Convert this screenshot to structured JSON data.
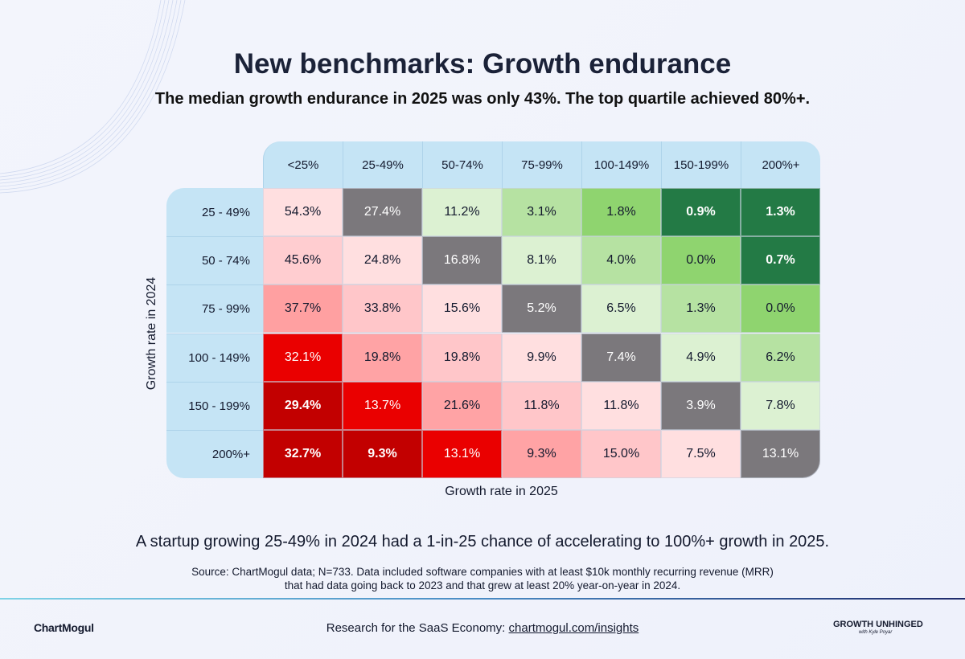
{
  "title": "New benchmarks: Growth endurance",
  "subtitle": "The median growth endurance in 2025 was only 43%. The top quartile achieved 80%+.",
  "note": "A startup growing 25-49% in 2024 had a 1-in-25 chance of accelerating to 100%+ growth in 2025.",
  "source_line1": "Source: ChartMogul data; N=733. Data included software companies with at least $10k monthly recurring revenue (MRR)",
  "source_line2": "that had data going back to 2023 and that grew at least 20% year-on-year in 2024.",
  "footer": {
    "brand": "ChartMogul",
    "tagline": "Research for the SaaS Economy: ",
    "link": "chartmogul.com/insights",
    "partner": "GROWTH UNHINGED",
    "partner_sub": "with Kyle Poyar"
  },
  "chart_data": {
    "type": "heatmap",
    "xlabel": "Growth rate in 2025",
    "ylabel": "Growth rate in 2024",
    "columns": [
      "<25%",
      "25-49%",
      "50-74%",
      "75-99%",
      "100-149%",
      "150-199%",
      "200%+"
    ],
    "rows": [
      "25 - 49%",
      "50 - 74%",
      "75 - 99%",
      "100 - 149%",
      "150 - 199%",
      "200%+"
    ],
    "values": [
      [
        "54.3%",
        "27.4%",
        "11.2%",
        "3.1%",
        "1.8%",
        "0.9%",
        "1.3%"
      ],
      [
        "45.6%",
        "24.8%",
        "16.8%",
        "8.1%",
        "4.0%",
        "0.0%",
        "0.7%"
      ],
      [
        "37.7%",
        "33.8%",
        "15.6%",
        "5.2%",
        "6.5%",
        "1.3%",
        "0.0%"
      ],
      [
        "32.1%",
        "19.8%",
        "19.8%",
        "9.9%",
        "7.4%",
        "4.9%",
        "6.2%"
      ],
      [
        "29.4%",
        "13.7%",
        "21.6%",
        "11.8%",
        "11.8%",
        "3.9%",
        "7.8%"
      ],
      [
        "32.7%",
        "9.3%",
        "13.1%",
        "9.3%",
        "15.0%",
        "7.5%",
        "13.1%"
      ]
    ],
    "colors": [
      [
        "#ffdfe0",
        "#7b787c",
        "#dcf1d2",
        "#b6e2a2",
        "#8fd46f",
        "#237a45",
        "#237a45"
      ],
      [
        "#ffcdd0",
        "#ffdfe0",
        "#7b787c",
        "#dcf1d2",
        "#b6e2a2",
        "#8fd46f",
        "#237a45"
      ],
      [
        "#ffa0a1",
        "#ffc6c9",
        "#ffdfe0",
        "#7b787c",
        "#dcf1d2",
        "#b6e2a2",
        "#8fd46f"
      ],
      [
        "#ea0000",
        "#ffa3a5",
        "#ffc6c9",
        "#ffdfe0",
        "#7b787c",
        "#dcf1d2",
        "#b6e2a2"
      ],
      [
        "#c20000",
        "#ea0000",
        "#ffa3a5",
        "#ffc6c9",
        "#ffdfe0",
        "#7b787c",
        "#dcf1d2"
      ],
      [
        "#c20000",
        "#c20000",
        "#ea0000",
        "#ffa3a5",
        "#ffc6c9",
        "#ffdfe0",
        "#7b787c"
      ]
    ],
    "bold": [
      [
        0,
        5
      ],
      [
        0,
        6
      ],
      [
        1,
        6
      ],
      [
        4,
        0
      ],
      [
        5,
        0
      ],
      [
        5,
        1
      ]
    ],
    "header_color": "#c5e4f5"
  }
}
